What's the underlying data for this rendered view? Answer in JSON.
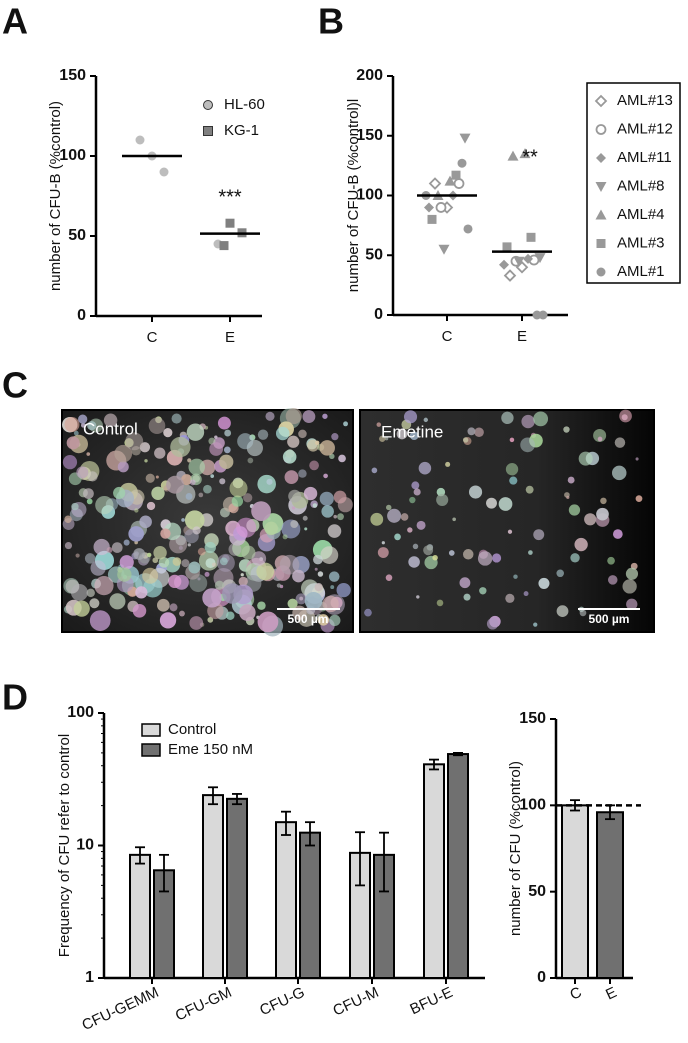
{
  "panel_labels": [
    "A",
    "B",
    "C",
    "D"
  ],
  "micrographs": [
    {
      "label": "Control",
      "scale": "500 µm"
    },
    {
      "label": "Emetine",
      "scale": "500 µm"
    }
  ],
  "chart_data": [
    {
      "type": "dotplot",
      "y_label": "number of CFU-B (%control)",
      "categories": [
        "C",
        "E"
      ],
      "series": [
        {
          "name": "HL-60",
          "color": "#bdbdbd",
          "marker": "circle",
          "x": [
            0,
            0,
            0,
            1
          ],
          "values": [
            110,
            100,
            90,
            45
          ]
        },
        {
          "name": "KG-1",
          "color": "#808080",
          "marker": "square",
          "x": [
            1,
            1,
            1
          ],
          "values": [
            58,
            52,
            44
          ]
        }
      ],
      "means": [
        100,
        51.5
      ],
      "annotation": "***",
      "ylim": [
        0,
        150
      ],
      "yticks": [
        0,
        50,
        100,
        150
      ]
    },
    {
      "type": "dotplot",
      "y_label": "number of CFU-B (%control)l",
      "categories": [
        "C",
        "E"
      ],
      "series": [
        {
          "name": "AML#13",
          "color": "#999999",
          "marker": "diamond-open",
          "x": [
            0,
            0,
            1,
            1
          ],
          "values": [
            110,
            90,
            33,
            40
          ]
        },
        {
          "name": "AML#12",
          "color": "#999999",
          "marker": "circle-open",
          "x": [
            0,
            0,
            1,
            1
          ],
          "values": [
            110,
            90,
            46,
            45
          ]
        },
        {
          "name": "AML#11",
          "color": "#999999",
          "marker": "diamond",
          "x": [
            0,
            0,
            1,
            1
          ],
          "values": [
            100,
            90,
            47,
            42
          ]
        },
        {
          "name": "AML#8",
          "color": "#999999",
          "marker": "triangle-down",
          "x": [
            0,
            0,
            1,
            1
          ],
          "values": [
            148,
            55,
            48,
            45
          ]
        },
        {
          "name": "AML#4",
          "color": "#999999",
          "marker": "triangle",
          "x": [
            0,
            0,
            1,
            1
          ],
          "values": [
            112,
            100,
            135,
            133
          ]
        },
        {
          "name": "AML#3",
          "color": "#999999",
          "marker": "square",
          "x": [
            0,
            0,
            1,
            1
          ],
          "values": [
            117,
            80,
            65,
            57
          ]
        },
        {
          "name": "AML#1",
          "color": "#999999",
          "marker": "circle",
          "x": [
            0,
            0,
            0,
            1,
            1
          ],
          "values": [
            127,
            72,
            100,
            0,
            0
          ]
        }
      ],
      "means": [
        100,
        53
      ],
      "annotation": "**",
      "ylim": [
        0,
        200
      ],
      "yticks": [
        0,
        50,
        100,
        150,
        200
      ]
    },
    {
      "type": "bar",
      "log": true,
      "y_label": "Frequency of CFU refer to control",
      "categories": [
        "CFU-GEMM",
        "CFU-GM",
        "CFU-G",
        "CFU-M",
        "BFU-E"
      ],
      "series": [
        {
          "name": "Control",
          "color": "#d9d9d9",
          "values": [
            8.5,
            24,
            15,
            8.8,
            41
          ],
          "errors": [
            1.2,
            3.5,
            3,
            3.8,
            3.5
          ]
        },
        {
          "name": "Eme 150 nM",
          "color": "#707070",
          "values": [
            6.5,
            22.5,
            12.5,
            8.5,
            49
          ],
          "errors": [
            2,
            2,
            2.5,
            4,
            1
          ]
        }
      ],
      "ylim": [
        1,
        100
      ],
      "yticks": [
        1,
        10,
        100
      ]
    },
    {
      "type": "bar",
      "y_label": "number of CFU (%control)",
      "categories": [
        "C",
        "E"
      ],
      "series": [
        {
          "colors": [
            "#d9d9d9",
            "#707070"
          ],
          "values": [
            100,
            96
          ],
          "errors": [
            3,
            4
          ]
        }
      ],
      "reference": 100,
      "ylim": [
        0,
        150
      ],
      "yticks": [
        0,
        50,
        100,
        150
      ]
    }
  ]
}
